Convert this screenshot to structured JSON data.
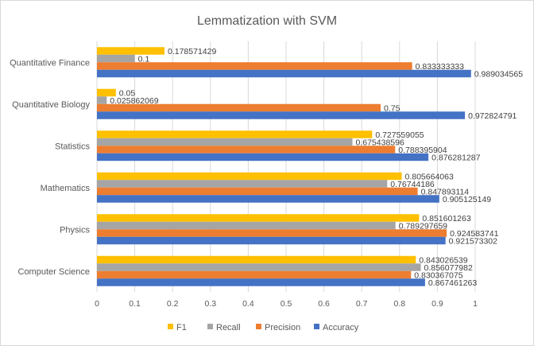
{
  "chart_data": {
    "type": "bar",
    "orientation": "horizontal",
    "title": "Lemmatization with SVM",
    "categories": [
      "Computer Science",
      "Physics",
      "Mathematics",
      "Statistics",
      "Quantitative Biology",
      "Quantitative Finance"
    ],
    "series": [
      {
        "name": "F1",
        "color": "#FFC000",
        "values": [
          0.843026539,
          0.851601263,
          0.805664063,
          0.727559055,
          0.05,
          0.178571429
        ]
      },
      {
        "name": "Recall",
        "color": "#A5A5A5",
        "values": [
          0.856077982,
          0.789297659,
          0.76744186,
          0.675438596,
          0.025862069,
          0.1
        ]
      },
      {
        "name": "Precision",
        "color": "#ED7D31",
        "values": [
          0.830367075,
          0.924583741,
          0.847893114,
          0.788395904,
          0.75,
          0.833333333
        ]
      },
      {
        "name": "Accuracy",
        "color": "#4472C4",
        "values": [
          0.867461263,
          0.921573302,
          0.905125149,
          0.876281287,
          0.972824791,
          0.989034565
        ]
      }
    ],
    "data_labels": {
      "F1": [
        "0.843026539",
        "0.851601263",
        "0.805664063",
        "0.727559055",
        "0.05",
        "0.178571429"
      ],
      "Recall": [
        "0.856077982",
        "0.789297659",
        "0.76744186",
        "0.675438596",
        "0.025862069",
        "0.1"
      ],
      "Precision": [
        "0.830367075",
        "0.924583741",
        "0.847893114",
        "0.788395904",
        "0.75",
        "0.833333333"
      ],
      "Accuracy": [
        "0.867461263",
        "0.921573302",
        "0.905125149",
        "0.876281287",
        "0.972824791",
        "0.989034565"
      ]
    },
    "xlim": [
      0,
      1
    ],
    "xticks": [
      "0",
      "0.1",
      "0.2",
      "0.3",
      "0.4",
      "0.5",
      "0.6",
      "0.7",
      "0.8",
      "0.9",
      "1"
    ],
    "xlabel": "",
    "ylabel": "",
    "grid": "vertical",
    "legend_position": "bottom"
  }
}
